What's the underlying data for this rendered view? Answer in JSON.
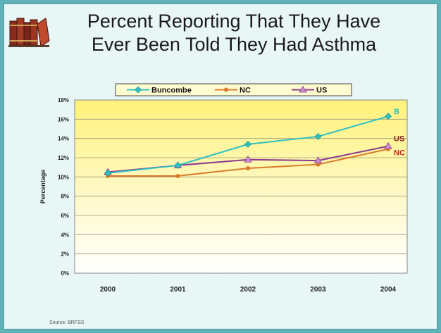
{
  "title_line1": "Percent Reporting That They Have",
  "title_line2": "Ever Been Told They Had Asthma",
  "source": "Source: BRFSS",
  "icon": "books-icon",
  "chart_data": {
    "type": "line",
    "x": [
      "2000",
      "2001",
      "2002",
      "2003",
      "2004"
    ],
    "series": [
      {
        "name": "Buncombe",
        "end_label": "B",
        "color": "#2fc1c1",
        "marker": "diamond",
        "values": [
          10.4,
          11.2,
          13.4,
          14.2,
          16.3
        ]
      },
      {
        "name": "NC",
        "end_label": "NC",
        "color": "#d9792b",
        "marker": "circle",
        "values": [
          10.1,
          10.1,
          10.9,
          11.3,
          12.9
        ]
      },
      {
        "name": "US",
        "end_label": "US",
        "color": "#8b3a8f",
        "marker": "triangle",
        "values": [
          10.5,
          11.2,
          11.8,
          11.7,
          13.2
        ]
      }
    ],
    "ylabel": "Percentage",
    "ylim": [
      0,
      18
    ],
    "yticks": [
      "0%",
      "2%",
      "4%",
      "6%",
      "8%",
      "10%",
      "12%",
      "14%",
      "16%",
      "18%"
    ],
    "grid": true,
    "legend": "top"
  }
}
